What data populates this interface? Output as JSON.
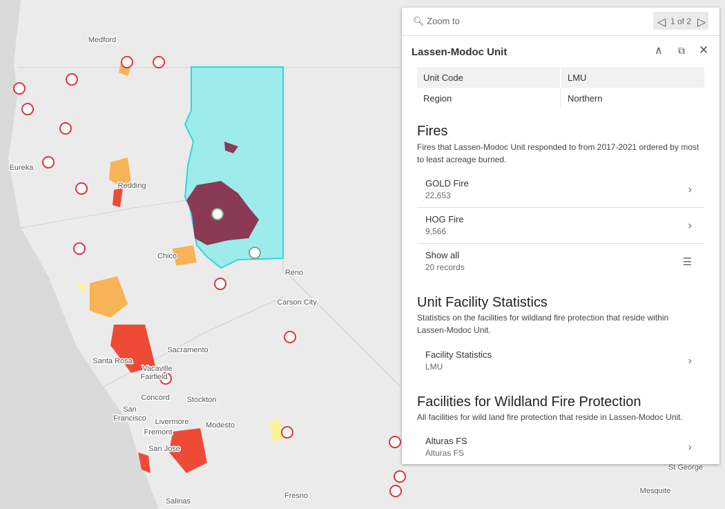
{
  "map": {
    "labels": [
      "Medford",
      "Eureka",
      "Redding",
      "Chico",
      "Reno",
      "Carson City",
      "Sacramento",
      "Santa Rosa",
      "Vacaville",
      "Fairfield",
      "Concord",
      "Stockton",
      "San",
      "Francisco",
      "Livermore",
      "Fremont",
      "Modesto",
      "San Jose",
      "Salinas",
      "Fresno",
      "St George",
      "Mesquite"
    ]
  },
  "popup": {
    "toolbar": {
      "zoom": "Zoom to",
      "pager": "1 of 2"
    },
    "title": "Lassen-Modoc Unit",
    "attributes": [
      [
        "Unit Code",
        "LMU"
      ],
      [
        "Region",
        "Northern"
      ]
    ],
    "sections": [
      {
        "heading": "Fires",
        "description": "Fires that Lassen-Modoc Unit responded to from 2017-2021 ordered by most to least acreage burned.",
        "items": [
          {
            "title": "GOLD Fire",
            "subtitle": "22,653"
          },
          {
            "title": "HOG Fire",
            "subtitle": "9,566"
          },
          {
            "title": "Show all",
            "subtitle": "20 records"
          }
        ]
      },
      {
        "heading": "Unit Facility Statistics",
        "description": "Statistics on the facilities for wildland fire protection that reside within Lassen-Modoc Unit.",
        "items": [
          {
            "title": "Facility Statistics",
            "subtitle": "LMU"
          }
        ]
      },
      {
        "heading": "Facilities for Wildland Fire Protection",
        "description": "All facilities for wild land fire protection that reside in Lassen-Modoc Unit.",
        "items": [
          {
            "title": "Alturas FS",
            "subtitle": "Alturas FS"
          }
        ]
      }
    ]
  }
}
